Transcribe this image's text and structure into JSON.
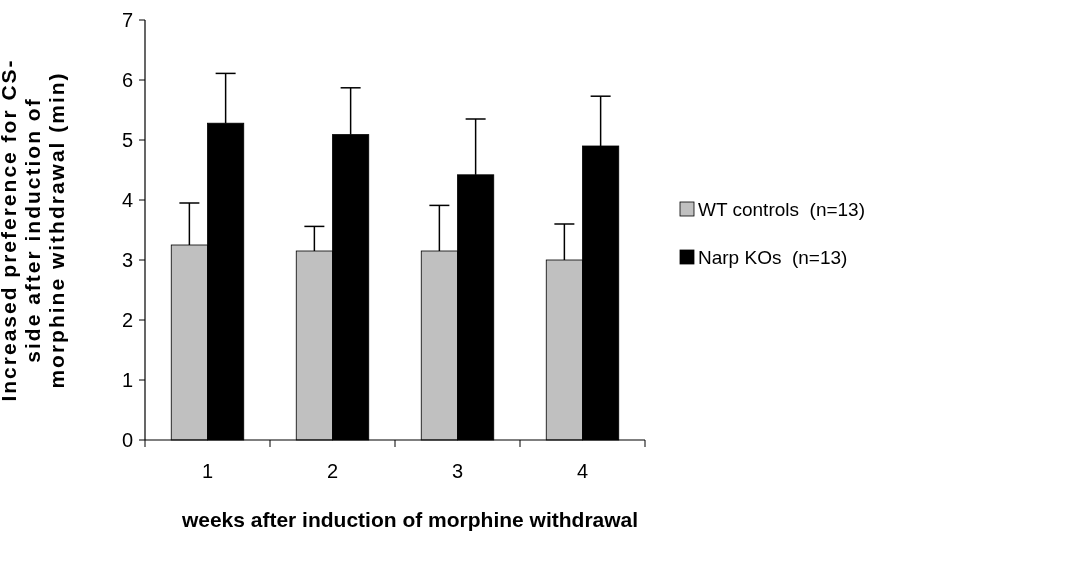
{
  "chart_data": {
    "type": "bar",
    "xlabel": "weeks after induction of morphine withdrawal",
    "ylabel": "Increased preference for CS-side after induction of morphine withdrawal (min)",
    "categories": [
      "1",
      "2",
      "3",
      "4"
    ],
    "ylim": [
      0,
      7
    ],
    "yticks": [
      0,
      1,
      2,
      3,
      4,
      5,
      6,
      7
    ],
    "legend": "right",
    "grid": false,
    "series": [
      {
        "name": "WT controls  (n=13)",
        "color": "#c0c0c0",
        "values": [
          3.25,
          3.15,
          3.15,
          3.0
        ],
        "errors": [
          [
            3.25,
            3.95
          ],
          [
            3.15,
            3.56
          ],
          [
            3.15,
            3.91
          ],
          [
            3.0,
            3.6
          ]
        ]
      },
      {
        "name": "Narp KOs  (n=13)",
        "color": "#000000",
        "values": [
          5.28,
          5.09,
          4.42,
          4.9
        ],
        "errors": [
          [
            5.28,
            6.11
          ],
          [
            5.09,
            5.87
          ],
          [
            4.42,
            5.35
          ],
          [
            4.9,
            5.73
          ]
        ]
      }
    ]
  }
}
